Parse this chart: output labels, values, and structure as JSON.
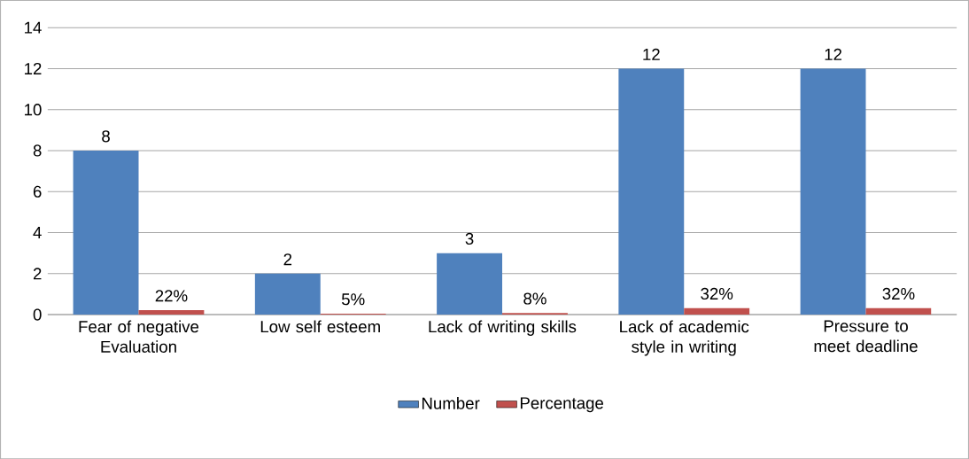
{
  "chart_data": {
    "type": "bar",
    "categories": [
      "Fear of negative Evaluation",
      "Low self esteem",
      "Lack of writing skills",
      "Lack of academic style in writing",
      "Pressure  to meet deadline"
    ],
    "series": [
      {
        "name": "Number",
        "color": "#4f81bd",
        "values": [
          8,
          2,
          3,
          12,
          12
        ],
        "value_labels": [
          "8",
          "2",
          "3",
          "12",
          "12"
        ]
      },
      {
        "name": "Percentage",
        "color": "#c0504d",
        "values": [
          0.22,
          0.05,
          0.08,
          0.32,
          0.32
        ],
        "value_labels": [
          "22%",
          "5%",
          "8%",
          "32%",
          "32%"
        ]
      }
    ],
    "ylim": [
      0,
      14
    ],
    "yticks": [
      0,
      2,
      4,
      6,
      8,
      10,
      12,
      14
    ],
    "grid": "y",
    "legend": "bottom"
  }
}
